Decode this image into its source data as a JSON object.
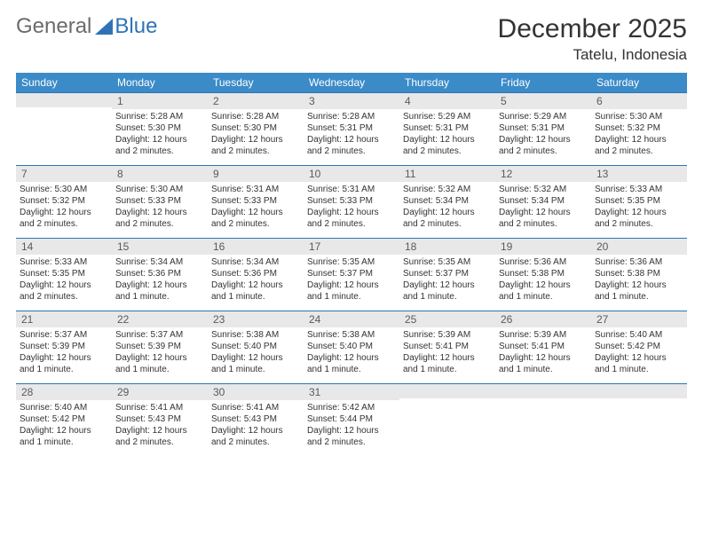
{
  "logo": {
    "word1": "General",
    "word2": "Blue"
  },
  "header": {
    "title": "December 2025",
    "location": "Tatelu, Indonesia"
  },
  "weekdays": [
    "Sunday",
    "Monday",
    "Tuesday",
    "Wednesday",
    "Thursday",
    "Friday",
    "Saturday"
  ],
  "style": {
    "header_bg": "#3b8bc8",
    "header_fg": "#ffffff",
    "daynum_bg": "#e8e8e8",
    "daynum_border": "#2e74b5",
    "page_bg": "#ffffff",
    "text_color": "#333333",
    "logo_gray": "#6b6b6b",
    "logo_blue": "#2e74b5",
    "title_fontsize": 30,
    "location_fontsize": 17,
    "th_fontsize": 12,
    "body_fontsize": 10
  },
  "weeks": [
    [
      {
        "n": "",
        "sunrise": "",
        "sunset": "",
        "daylight": ""
      },
      {
        "n": "1",
        "sunrise": "Sunrise: 5:28 AM",
        "sunset": "Sunset: 5:30 PM",
        "daylight": "Daylight: 12 hours and 2 minutes."
      },
      {
        "n": "2",
        "sunrise": "Sunrise: 5:28 AM",
        "sunset": "Sunset: 5:30 PM",
        "daylight": "Daylight: 12 hours and 2 minutes."
      },
      {
        "n": "3",
        "sunrise": "Sunrise: 5:28 AM",
        "sunset": "Sunset: 5:31 PM",
        "daylight": "Daylight: 12 hours and 2 minutes."
      },
      {
        "n": "4",
        "sunrise": "Sunrise: 5:29 AM",
        "sunset": "Sunset: 5:31 PM",
        "daylight": "Daylight: 12 hours and 2 minutes."
      },
      {
        "n": "5",
        "sunrise": "Sunrise: 5:29 AM",
        "sunset": "Sunset: 5:31 PM",
        "daylight": "Daylight: 12 hours and 2 minutes."
      },
      {
        "n": "6",
        "sunrise": "Sunrise: 5:30 AM",
        "sunset": "Sunset: 5:32 PM",
        "daylight": "Daylight: 12 hours and 2 minutes."
      }
    ],
    [
      {
        "n": "7",
        "sunrise": "Sunrise: 5:30 AM",
        "sunset": "Sunset: 5:32 PM",
        "daylight": "Daylight: 12 hours and 2 minutes."
      },
      {
        "n": "8",
        "sunrise": "Sunrise: 5:30 AM",
        "sunset": "Sunset: 5:33 PM",
        "daylight": "Daylight: 12 hours and 2 minutes."
      },
      {
        "n": "9",
        "sunrise": "Sunrise: 5:31 AM",
        "sunset": "Sunset: 5:33 PM",
        "daylight": "Daylight: 12 hours and 2 minutes."
      },
      {
        "n": "10",
        "sunrise": "Sunrise: 5:31 AM",
        "sunset": "Sunset: 5:33 PM",
        "daylight": "Daylight: 12 hours and 2 minutes."
      },
      {
        "n": "11",
        "sunrise": "Sunrise: 5:32 AM",
        "sunset": "Sunset: 5:34 PM",
        "daylight": "Daylight: 12 hours and 2 minutes."
      },
      {
        "n": "12",
        "sunrise": "Sunrise: 5:32 AM",
        "sunset": "Sunset: 5:34 PM",
        "daylight": "Daylight: 12 hours and 2 minutes."
      },
      {
        "n": "13",
        "sunrise": "Sunrise: 5:33 AM",
        "sunset": "Sunset: 5:35 PM",
        "daylight": "Daylight: 12 hours and 2 minutes."
      }
    ],
    [
      {
        "n": "14",
        "sunrise": "Sunrise: 5:33 AM",
        "sunset": "Sunset: 5:35 PM",
        "daylight": "Daylight: 12 hours and 2 minutes."
      },
      {
        "n": "15",
        "sunrise": "Sunrise: 5:34 AM",
        "sunset": "Sunset: 5:36 PM",
        "daylight": "Daylight: 12 hours and 1 minute."
      },
      {
        "n": "16",
        "sunrise": "Sunrise: 5:34 AM",
        "sunset": "Sunset: 5:36 PM",
        "daylight": "Daylight: 12 hours and 1 minute."
      },
      {
        "n": "17",
        "sunrise": "Sunrise: 5:35 AM",
        "sunset": "Sunset: 5:37 PM",
        "daylight": "Daylight: 12 hours and 1 minute."
      },
      {
        "n": "18",
        "sunrise": "Sunrise: 5:35 AM",
        "sunset": "Sunset: 5:37 PM",
        "daylight": "Daylight: 12 hours and 1 minute."
      },
      {
        "n": "19",
        "sunrise": "Sunrise: 5:36 AM",
        "sunset": "Sunset: 5:38 PM",
        "daylight": "Daylight: 12 hours and 1 minute."
      },
      {
        "n": "20",
        "sunrise": "Sunrise: 5:36 AM",
        "sunset": "Sunset: 5:38 PM",
        "daylight": "Daylight: 12 hours and 1 minute."
      }
    ],
    [
      {
        "n": "21",
        "sunrise": "Sunrise: 5:37 AM",
        "sunset": "Sunset: 5:39 PM",
        "daylight": "Daylight: 12 hours and 1 minute."
      },
      {
        "n": "22",
        "sunrise": "Sunrise: 5:37 AM",
        "sunset": "Sunset: 5:39 PM",
        "daylight": "Daylight: 12 hours and 1 minute."
      },
      {
        "n": "23",
        "sunrise": "Sunrise: 5:38 AM",
        "sunset": "Sunset: 5:40 PM",
        "daylight": "Daylight: 12 hours and 1 minute."
      },
      {
        "n": "24",
        "sunrise": "Sunrise: 5:38 AM",
        "sunset": "Sunset: 5:40 PM",
        "daylight": "Daylight: 12 hours and 1 minute."
      },
      {
        "n": "25",
        "sunrise": "Sunrise: 5:39 AM",
        "sunset": "Sunset: 5:41 PM",
        "daylight": "Daylight: 12 hours and 1 minute."
      },
      {
        "n": "26",
        "sunrise": "Sunrise: 5:39 AM",
        "sunset": "Sunset: 5:41 PM",
        "daylight": "Daylight: 12 hours and 1 minute."
      },
      {
        "n": "27",
        "sunrise": "Sunrise: 5:40 AM",
        "sunset": "Sunset: 5:42 PM",
        "daylight": "Daylight: 12 hours and 1 minute."
      }
    ],
    [
      {
        "n": "28",
        "sunrise": "Sunrise: 5:40 AM",
        "sunset": "Sunset: 5:42 PM",
        "daylight": "Daylight: 12 hours and 1 minute."
      },
      {
        "n": "29",
        "sunrise": "Sunrise: 5:41 AM",
        "sunset": "Sunset: 5:43 PM",
        "daylight": "Daylight: 12 hours and 2 minutes."
      },
      {
        "n": "30",
        "sunrise": "Sunrise: 5:41 AM",
        "sunset": "Sunset: 5:43 PM",
        "daylight": "Daylight: 12 hours and 2 minutes."
      },
      {
        "n": "31",
        "sunrise": "Sunrise: 5:42 AM",
        "sunset": "Sunset: 5:44 PM",
        "daylight": "Daylight: 12 hours and 2 minutes."
      },
      {
        "n": "",
        "sunrise": "",
        "sunset": "",
        "daylight": ""
      },
      {
        "n": "",
        "sunrise": "",
        "sunset": "",
        "daylight": ""
      },
      {
        "n": "",
        "sunrise": "",
        "sunset": "",
        "daylight": ""
      }
    ]
  ]
}
